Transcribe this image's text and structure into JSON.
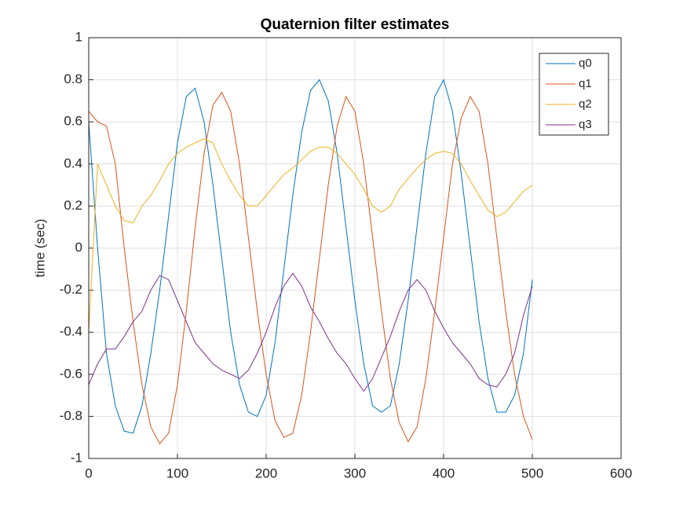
{
  "chart_data": {
    "type": "line",
    "title": "Quaternion filter estimates",
    "y_label": "time (sec)",
    "x": [
      0,
      10,
      20,
      30,
      40,
      50,
      60,
      70,
      80,
      90,
      100,
      110,
      120,
      130,
      140,
      150,
      160,
      170,
      180,
      190,
      200,
      210,
      220,
      230,
      240,
      250,
      260,
      270,
      280,
      290,
      300,
      310,
      320,
      330,
      340,
      350,
      360,
      370,
      380,
      390,
      400,
      410,
      420,
      430,
      440,
      450,
      460,
      470,
      480,
      490,
      500
    ],
    "series": [
      {
        "name": "q0",
        "color": "#0072BD",
        "values": [
          0.6,
          0.0,
          -0.5,
          -0.75,
          -0.87,
          -0.88,
          -0.75,
          -0.5,
          -0.2,
          0.15,
          0.5,
          0.72,
          0.76,
          0.6,
          0.3,
          -0.05,
          -0.4,
          -0.65,
          -0.78,
          -0.8,
          -0.7,
          -0.45,
          -0.1,
          0.25,
          0.55,
          0.75,
          0.8,
          0.7,
          0.45,
          0.1,
          -0.25,
          -0.55,
          -0.75,
          -0.78,
          -0.75,
          -0.55,
          -0.25,
          0.1,
          0.45,
          0.72,
          0.8,
          0.65,
          0.35,
          0.0,
          -0.35,
          -0.62,
          -0.78,
          -0.78,
          -0.7,
          -0.5,
          -0.15
        ]
      },
      {
        "name": "q1",
        "color": "#D95319",
        "values": [
          0.65,
          0.6,
          0.58,
          0.4,
          0.0,
          -0.35,
          -0.65,
          -0.85,
          -0.93,
          -0.88,
          -0.65,
          -0.3,
          0.1,
          0.45,
          0.68,
          0.74,
          0.65,
          0.4,
          0.05,
          -0.3,
          -0.6,
          -0.82,
          -0.9,
          -0.88,
          -0.7,
          -0.4,
          -0.05,
          0.3,
          0.58,
          0.72,
          0.65,
          0.4,
          0.05,
          -0.3,
          -0.62,
          -0.83,
          -0.92,
          -0.85,
          -0.62,
          -0.3,
          0.05,
          0.4,
          0.62,
          0.72,
          0.65,
          0.4,
          0.05,
          -0.3,
          -0.6,
          -0.8,
          -0.91
        ]
      },
      {
        "name": "q2",
        "color": "#EDB120",
        "values": [
          -0.4,
          0.4,
          0.3,
          0.2,
          0.13,
          0.12,
          0.2,
          0.25,
          0.32,
          0.4,
          0.45,
          0.48,
          0.5,
          0.52,
          0.5,
          0.4,
          0.32,
          0.25,
          0.2,
          0.2,
          0.25,
          0.3,
          0.35,
          0.38,
          0.42,
          0.46,
          0.48,
          0.48,
          0.45,
          0.4,
          0.35,
          0.28,
          0.2,
          0.17,
          0.2,
          0.28,
          0.33,
          0.38,
          0.42,
          0.45,
          0.46,
          0.45,
          0.4,
          0.32,
          0.25,
          0.18,
          0.15,
          0.17,
          0.22,
          0.27,
          0.3
        ]
      },
      {
        "name": "q3",
        "color": "#7E2F8E",
        "values": [
          -0.65,
          -0.55,
          -0.48,
          -0.48,
          -0.42,
          -0.35,
          -0.3,
          -0.2,
          -0.13,
          -0.15,
          -0.25,
          -0.35,
          -0.45,
          -0.5,
          -0.55,
          -0.58,
          -0.6,
          -0.62,
          -0.58,
          -0.5,
          -0.4,
          -0.28,
          -0.18,
          -0.12,
          -0.18,
          -0.28,
          -0.35,
          -0.43,
          -0.5,
          -0.55,
          -0.62,
          -0.68,
          -0.62,
          -0.52,
          -0.42,
          -0.3,
          -0.2,
          -0.15,
          -0.2,
          -0.3,
          -0.38,
          -0.45,
          -0.5,
          -0.55,
          -0.62,
          -0.65,
          -0.66,
          -0.6,
          -0.5,
          -0.32,
          -0.18
        ]
      }
    ],
    "xlim": [
      0,
      600
    ],
    "xticks": [
      0,
      100,
      200,
      300,
      400,
      500,
      600
    ],
    "ylim": [
      -1,
      1
    ],
    "yticks": [
      -1,
      -0.8,
      -0.6,
      -0.4,
      -0.2,
      0,
      0.2,
      0.4,
      0.6,
      0.8,
      1
    ],
    "grid": true,
    "legend_position": "northeast"
  }
}
